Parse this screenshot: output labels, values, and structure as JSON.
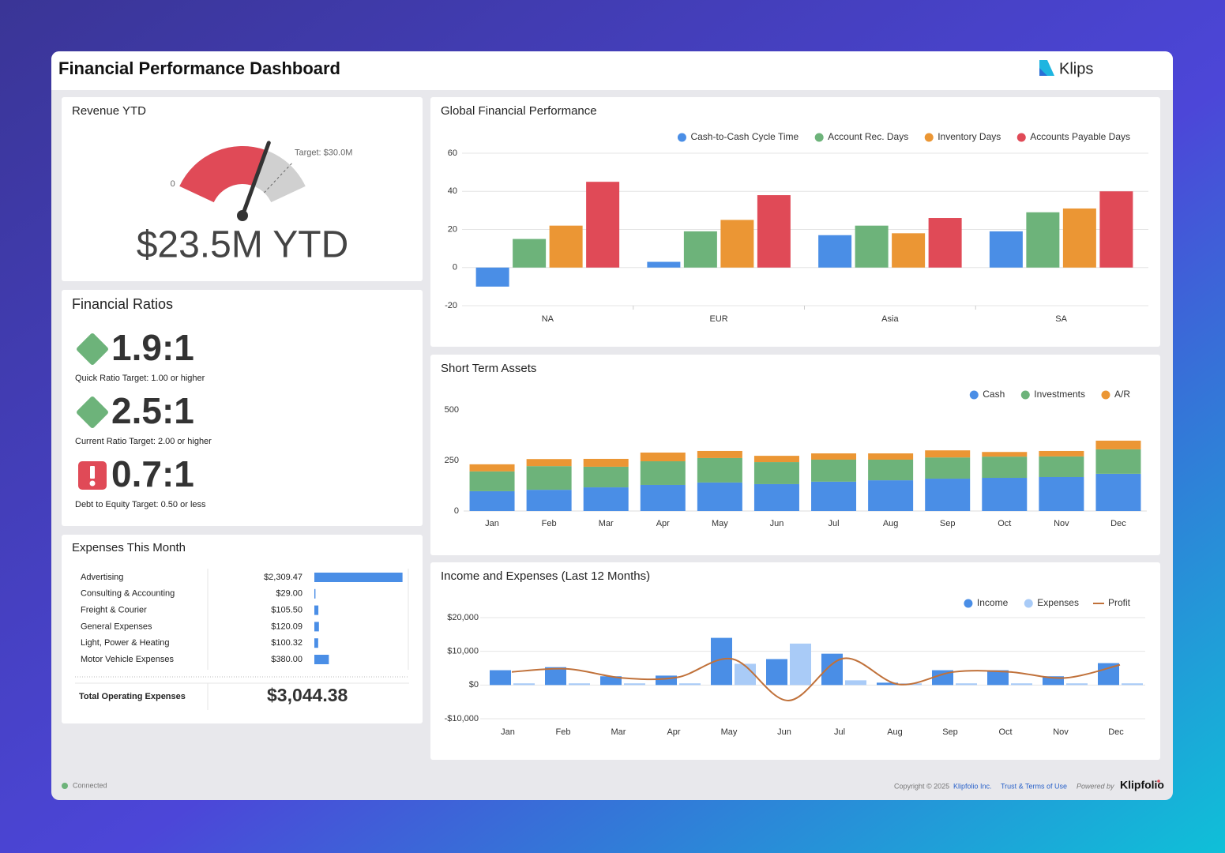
{
  "header": {
    "title": "Financial Performance Dashboard",
    "brand": "Klips"
  },
  "revenue": {
    "title": "Revenue YTD",
    "min": 0,
    "max": 36,
    "value": 23.5,
    "target": 30,
    "target_label": "Target: $30.0M",
    "value_label": "$23.5M YTD",
    "color": "#e04a57",
    "track_color": "#d0d0d0"
  },
  "ratios": {
    "title": "Financial Ratios",
    "items": [
      {
        "value": "1.9:1",
        "target": "Quick Ratio Target: 1.00 or higher",
        "status": "good"
      },
      {
        "value": "2.5:1",
        "target": "Current Ratio Target: 2.00 or higher",
        "status": "good"
      },
      {
        "value": "0.7:1",
        "target": "Debt to Equity Target: 0.50 or less",
        "status": "bad"
      }
    ]
  },
  "expenses": {
    "title": "Expenses This Month",
    "xlim": [
      0,
      2400
    ],
    "color": "#4a8ee6",
    "rows": [
      {
        "name": "Advertising",
        "value": 2309.47,
        "value_label": "$2,309.47"
      },
      {
        "name": "Consulting & Accounting",
        "value": 29.0,
        "value_label": "$29.00"
      },
      {
        "name": "Freight & Courier",
        "value": 105.5,
        "value_label": "$105.50"
      },
      {
        "name": "General Expenses",
        "value": 120.09,
        "value_label": "$120.09"
      },
      {
        "name": "Light, Power & Heating",
        "value": 100.32,
        "value_label": "$100.32"
      },
      {
        "name": "Motor Vehicle Expenses",
        "value": 380.0,
        "value_label": "$380.00"
      }
    ],
    "total": {
      "label": "Total Operating Expenses",
      "value": "$3,044.38"
    }
  },
  "chart_data": [
    {
      "type": "bar",
      "title": "Global Financial Performance",
      "categories": [
        "NA",
        "EUR",
        "Asia",
        "SA"
      ],
      "series": [
        {
          "name": "Cash-to-Cash Cycle Time",
          "color": "#4a8ee6",
          "values": [
            -10,
            3,
            17,
            19
          ]
        },
        {
          "name": "Account Rec. Days",
          "color": "#6db37a",
          "values": [
            15,
            19,
            22,
            29
          ]
        },
        {
          "name": "Inventory Days",
          "color": "#eb9634",
          "values": [
            22,
            25,
            18,
            31
          ]
        },
        {
          "name": "Accounts Payable Days",
          "color": "#e04a57",
          "values": [
            45,
            38,
            26,
            40
          ]
        }
      ],
      "ylim": [
        -20,
        60
      ],
      "yticks": [
        -20,
        0,
        20,
        40,
        60
      ],
      "grid": true,
      "stacked": false,
      "legend": "top-right"
    },
    {
      "type": "bar",
      "title": "Short Term Assets",
      "categories": [
        "Jan",
        "Feb",
        "Mar",
        "Apr",
        "May",
        "Jun",
        "Jul",
        "Aug",
        "Sep",
        "Oct",
        "Nov",
        "Dec"
      ],
      "series": [
        {
          "name": "Cash",
          "color": "#4a8ee6",
          "values": [
            98,
            105,
            117,
            129,
            141,
            133,
            145,
            152,
            160,
            164,
            168,
            184
          ]
        },
        {
          "name": "Investments",
          "color": "#6db37a",
          "values": [
            98,
            117,
            102,
            117,
            121,
            109,
            109,
            102,
            105,
            105,
            102,
            121
          ]
        },
        {
          "name": "A/R",
          "color": "#eb9634",
          "values": [
            35,
            35,
            39,
            43,
            35,
            31,
            31,
            31,
            35,
            23,
            27,
            43
          ]
        }
      ],
      "ylim": [
        0,
        500
      ],
      "yticks": [
        0,
        250,
        500
      ],
      "grid": false,
      "stacked": true,
      "legend": "top-right"
    },
    {
      "type": "bar",
      "title": "Income and Expenses (Last 12 Months)",
      "categories": [
        "Jan",
        "Feb",
        "Mar",
        "Apr",
        "May",
        "Jun",
        "Jul",
        "Aug",
        "Sep",
        "Oct",
        "Nov",
        "Dec"
      ],
      "series": [
        {
          "name": "Income",
          "color": "#4a8ee6",
          "type": "bar",
          "values": [
            4400,
            5300,
            2600,
            2800,
            14000,
            7700,
            9300,
            700,
            4400,
            4400,
            2600,
            6500
          ]
        },
        {
          "name": "Expenses",
          "color": "#a9cbf7",
          "type": "bar",
          "values": [
            500,
            500,
            500,
            500,
            6300,
            12300,
            1400,
            500,
            500,
            500,
            500,
            500
          ]
        },
        {
          "name": "Profit",
          "color": "#c0713a",
          "type": "line",
          "values": [
            3900,
            4800,
            2100,
            2300,
            7700,
            -4600,
            7900,
            200,
            3900,
            3900,
            2100,
            6000
          ]
        }
      ],
      "ylim": [
        -10000,
        20000
      ],
      "yticks": [
        {
          "value": -10000,
          "label": "-$10,000"
        },
        {
          "value": 0,
          "label": "$0"
        },
        {
          "value": 10000,
          "label": "$10,000"
        },
        {
          "value": 20000,
          "label": "$20,000"
        }
      ],
      "grid": true,
      "stacked": false,
      "legend": "top-right"
    }
  ],
  "footer": {
    "status": "Connected",
    "copyright": "Copyright © 2025",
    "company": "Klipfolio Inc.",
    "terms": "Trust & Terms of Use",
    "powered": "Powered by",
    "logo": "Klipfolio"
  }
}
